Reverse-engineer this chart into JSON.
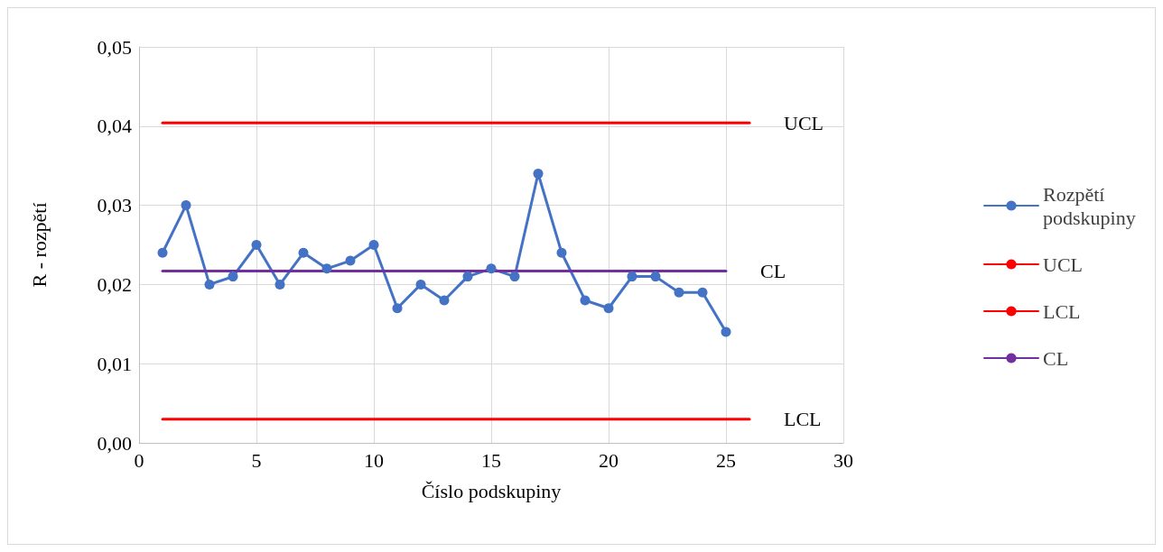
{
  "chart_data": {
    "type": "line",
    "xlabel": "Číslo podskupiny",
    "ylabel": "R - rozpětí",
    "x": [
      1,
      2,
      3,
      4,
      5,
      6,
      7,
      8,
      9,
      10,
      11,
      12,
      13,
      14,
      15,
      16,
      17,
      18,
      19,
      20,
      21,
      22,
      23,
      24,
      25
    ],
    "series": [
      {
        "name": "Rozpětí podskupiny",
        "color": "#4472c4",
        "marker": "circle",
        "values": [
          0.024,
          0.03,
          0.02,
          0.021,
          0.025,
          0.02,
          0.024,
          0.022,
          0.023,
          0.025,
          0.017,
          0.02,
          0.018,
          0.021,
          0.022,
          0.021,
          0.034,
          0.024,
          0.018,
          0.017,
          0.021,
          0.021,
          0.019,
          0.019,
          0.014
        ]
      },
      {
        "name": "UCL",
        "color": "#ff0000",
        "marker": "none",
        "x": [
          1,
          26
        ],
        "values": [
          0.0404,
          0.0404
        ]
      },
      {
        "name": "LCL",
        "color": "#ff0000",
        "marker": "none",
        "x": [
          1,
          26
        ],
        "values": [
          0.003,
          0.003
        ]
      },
      {
        "name": "CL",
        "color": "#7030a0",
        "marker": "none",
        "x": [
          1,
          25
        ],
        "values": [
          0.0217,
          0.0217
        ]
      }
    ],
    "xlim": [
      0,
      30
    ],
    "xticks": [
      0,
      5,
      10,
      15,
      20,
      25,
      30
    ],
    "ylim": [
      0,
      0.05
    ],
    "yticks": [
      {
        "value": 0,
        "label": "0,00"
      },
      {
        "value": 0.01,
        "label": "0,01"
      },
      {
        "value": 0.02,
        "label": "0,02"
      },
      {
        "value": 0.03,
        "label": "0,03"
      },
      {
        "value": 0.04,
        "label": "0,04"
      },
      {
        "value": 0.05,
        "label": "0,05"
      }
    ],
    "grid": true,
    "legend": "right",
    "line_style": "solid"
  }
}
